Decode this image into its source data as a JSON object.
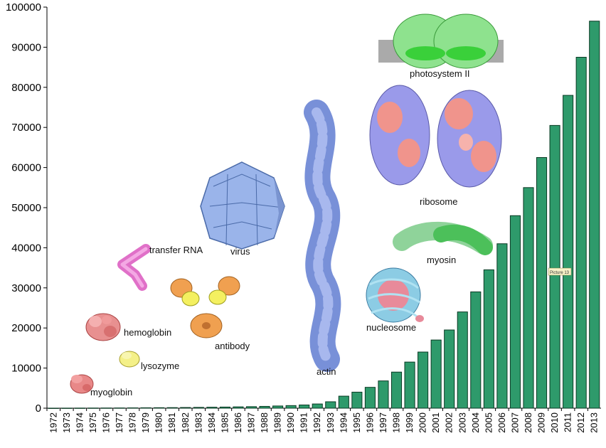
{
  "chart_data": {
    "type": "bar",
    "categories": [
      "1972",
      "1973",
      "1974",
      "1975",
      "1976",
      "1977",
      "1978",
      "1979",
      "1980",
      "1981",
      "1982",
      "1983",
      "1984",
      "1985",
      "1986",
      "1987",
      "1988",
      "1989",
      "1990",
      "1991",
      "1992",
      "1993",
      "1994",
      "1995",
      "1996",
      "1997",
      "1998",
      "1999",
      "2000",
      "2001",
      "2002",
      "2003",
      "2004",
      "2005",
      "2006",
      "2007",
      "2008",
      "2009",
      "2010",
      "2011",
      "2012",
      "2013"
    ],
    "values": [
      10,
      20,
      30,
      40,
      50,
      60,
      80,
      100,
      120,
      140,
      170,
      200,
      240,
      280,
      330,
      380,
      450,
      550,
      650,
      800,
      1050,
      1600,
      3000,
      4000,
      5200,
      6800,
      9000,
      11500,
      14000,
      17000,
      19500,
      24000,
      29000,
      34500,
      41000,
      48000,
      55000,
      62500,
      70500,
      78000,
      87500,
      96500
    ],
    "ylim": [
      0,
      100000
    ],
    "yticks": [
      "0",
      "10000",
      "20000",
      "30000",
      "40000",
      "50000",
      "60000",
      "70000",
      "80000",
      "90000",
      "100000"
    ],
    "bar_color": "#2e9a6b",
    "grid": false,
    "annotations": [
      "myoglobin",
      "lysozyme",
      "hemoglobin",
      "transfer RNA",
      "antibody",
      "virus",
      "actin",
      "nucleosome",
      "myosin",
      "ribosome",
      "photosystem II"
    ],
    "badge": "Picture 13"
  }
}
